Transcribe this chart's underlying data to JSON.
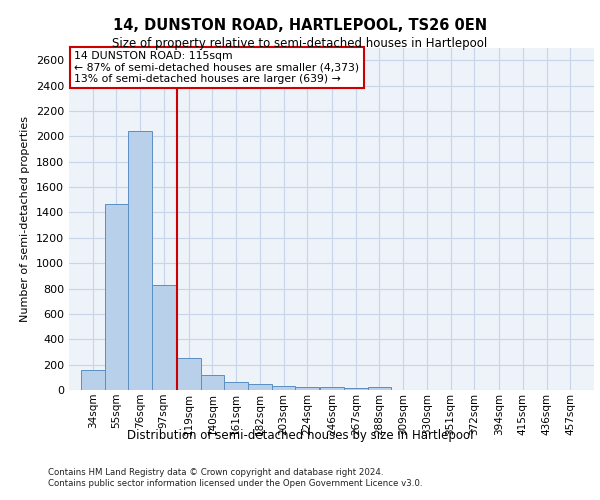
{
  "title_line1": "14, DUNSTON ROAD, HARTLEPOOL, TS26 0EN",
  "title_line2": "Size of property relative to semi-detached houses in Hartlepool",
  "xlabel": "Distribution of semi-detached houses by size in Hartlepool",
  "ylabel": "Number of semi-detached properties",
  "footer_line1": "Contains HM Land Registry data © Crown copyright and database right 2024.",
  "footer_line2": "Contains public sector information licensed under the Open Government Licence v3.0.",
  "annotation_title": "14 DUNSTON ROAD: 115sqm",
  "annotation_line1": "← 87% of semi-detached houses are smaller (4,373)",
  "annotation_line2": "13% of semi-detached houses are larger (639) →",
  "categories": [
    "34sqm",
    "55sqm",
    "76sqm",
    "97sqm",
    "119sqm",
    "140sqm",
    "161sqm",
    "182sqm",
    "203sqm",
    "224sqm",
    "246sqm",
    "267sqm",
    "288sqm",
    "309sqm",
    "330sqm",
    "351sqm",
    "372sqm",
    "394sqm",
    "415sqm",
    "436sqm",
    "457sqm"
  ],
  "bin_edges": [
    34,
    55,
    76,
    97,
    119,
    140,
    161,
    182,
    203,
    224,
    246,
    267,
    288,
    309,
    330,
    351,
    372,
    394,
    415,
    436,
    457
  ],
  "values": [
    155,
    1470,
    2040,
    830,
    255,
    120,
    65,
    45,
    30,
    25,
    20,
    15,
    25,
    0,
    0,
    0,
    0,
    0,
    0,
    0,
    0
  ],
  "bar_color": "#b8d0ea",
  "bar_edge_color": "#5a8fc3",
  "vline_x": 119,
  "vline_color": "#cc0000",
  "annotation_box_color": "#cc0000",
  "grid_color": "#c8d4e8",
  "background_color": "#eef2f9",
  "ylim": [
    0,
    2700
  ],
  "yticks": [
    0,
    200,
    400,
    600,
    800,
    1000,
    1200,
    1400,
    1600,
    1800,
    2000,
    2200,
    2400,
    2600
  ]
}
